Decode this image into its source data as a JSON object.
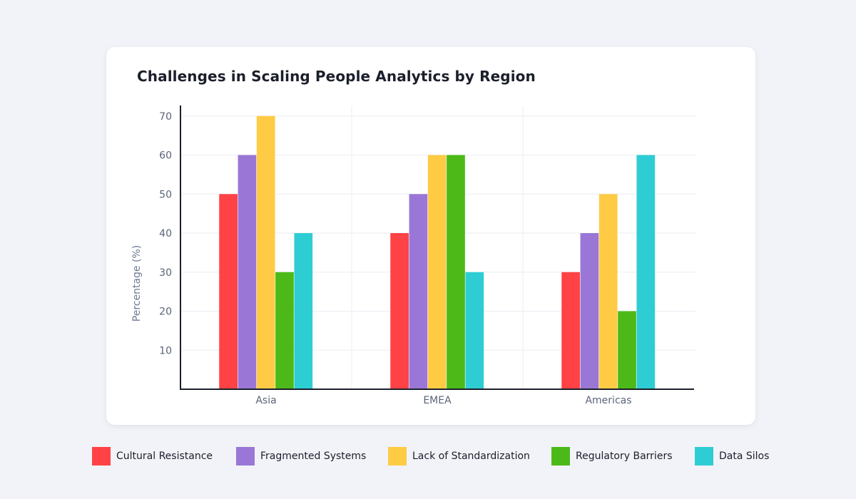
{
  "chart_data": {
    "type": "bar",
    "title": "Challenges in Scaling People Analytics by Region",
    "xlabel": "",
    "ylabel": "Percentage (%)",
    "ylim": [
      0,
      70
    ],
    "yticks": [
      10,
      20,
      30,
      40,
      50,
      60,
      70
    ],
    "categories": [
      "Asia",
      "EMEA",
      "Americas"
    ],
    "grid": true,
    "legend_position": "bottom",
    "series": [
      {
        "name": "Cultural Resistance",
        "color": "#ff4245",
        "values": [
          50,
          40,
          30
        ]
      },
      {
        "name": "Fragmented Systems",
        "color": "#9a77d6",
        "values": [
          60,
          50,
          40
        ]
      },
      {
        "name": "Lack of Standardization",
        "color": "#ffcb45",
        "values": [
          70,
          60,
          50
        ]
      },
      {
        "name": "Regulatory Barriers",
        "color": "#4cb918",
        "values": [
          30,
          60,
          20
        ]
      },
      {
        "name": "Data Silos",
        "color": "#2ecdd3",
        "values": [
          40,
          30,
          60
        ]
      }
    ]
  }
}
